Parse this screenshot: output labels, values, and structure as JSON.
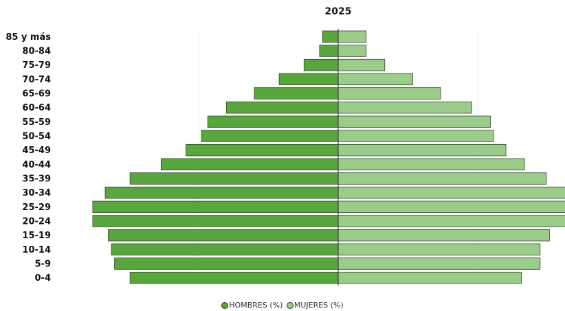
{
  "chart_data": {
    "type": "bar",
    "orientation": "horizontal",
    "title": "2025",
    "categories": [
      "85 y más",
      "80-84",
      "75-79",
      "70-74",
      "65-69",
      "60-64",
      "55-59",
      "50-54",
      "45-49",
      "40-44",
      "35-39",
      "30-34",
      "25-29",
      "20-24",
      "15-19",
      "10-14",
      "5-9",
      "0-4"
    ],
    "series": [
      {
        "name": "HOMBRES (%)",
        "color": "#5aa63e",
        "values": [
          0.5,
          0.6,
          1.1,
          1.9,
          2.7,
          3.6,
          4.2,
          4.4,
          4.9,
          5.7,
          6.7,
          7.5,
          7.9,
          7.9,
          7.4,
          7.3,
          7.2,
          6.7
        ]
      },
      {
        "name": "MUJERES (%)",
        "color": "#9ccc8b",
        "values": [
          0.9,
          0.9,
          1.5,
          2.4,
          3.3,
          4.3,
          4.9,
          5.0,
          5.4,
          6.0,
          6.7,
          7.4,
          7.5,
          7.5,
          6.8,
          6.5,
          6.5,
          5.9
        ]
      }
    ],
    "xlim": [
      -8.0,
      7.5
    ],
    "grid": true,
    "legend_position": "bottom-center"
  }
}
